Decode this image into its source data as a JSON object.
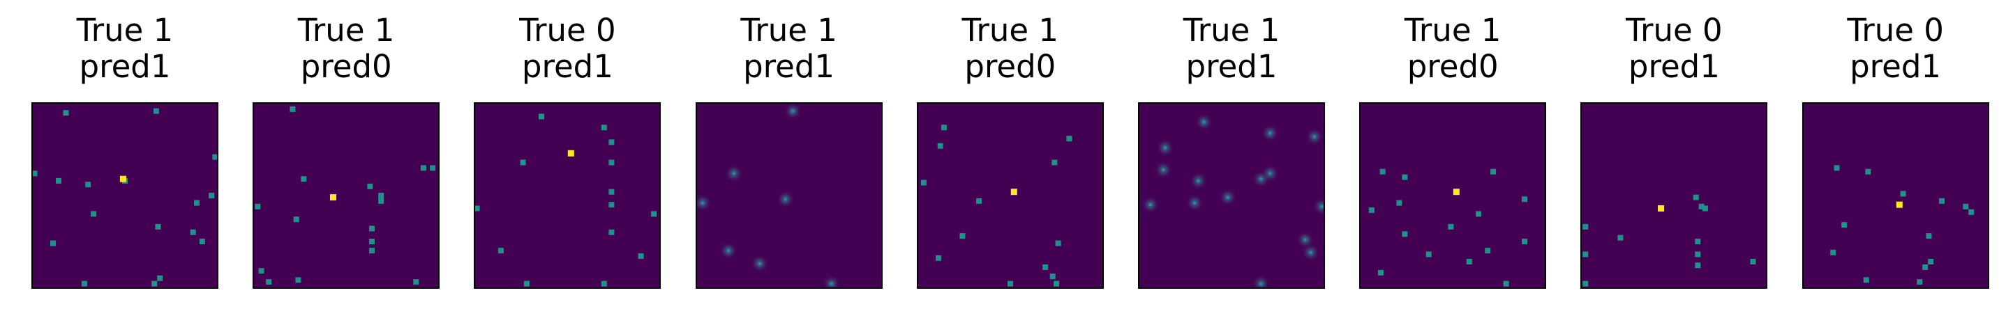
{
  "colors": {
    "background": "#440154",
    "dot_mid": "#21918c",
    "dot_high": "#fde725"
  },
  "panels": [
    {
      "title_line1": "True 1",
      "title_line2": "pred1",
      "blur": false,
      "dots": [
        [
          0.18,
          0.05
        ],
        [
          0.67,
          0.04
        ],
        [
          0.01,
          0.38
        ],
        [
          0.14,
          0.42
        ],
        [
          0.5,
          0.42
        ],
        [
          0.3,
          0.44
        ],
        [
          0.89,
          0.54
        ],
        [
          0.97,
          0.5
        ],
        [
          0.33,
          0.6
        ],
        [
          0.68,
          0.67
        ],
        [
          0.87,
          0.7
        ],
        [
          0.92,
          0.75
        ],
        [
          0.11,
          0.76
        ],
        [
          0.99,
          0.29
        ],
        [
          0.69,
          0.95
        ],
        [
          0.66,
          0.98
        ],
        [
          0.28,
          0.98
        ]
      ],
      "hot": [
        [
          0.49,
          0.41
        ]
      ]
    },
    {
      "title_line1": "True 1",
      "title_line2": "pred0",
      "blur": false,
      "dots": [
        [
          0.21,
          0.03
        ],
        [
          0.92,
          0.35
        ],
        [
          0.97,
          0.35
        ],
        [
          0.63,
          0.45
        ],
        [
          0.27,
          0.41
        ],
        [
          0.02,
          0.56
        ],
        [
          0.69,
          0.5
        ],
        [
          0.69,
          0.53
        ],
        [
          0.23,
          0.63
        ],
        [
          0.64,
          0.68
        ],
        [
          0.64,
          0.75
        ],
        [
          0.64,
          0.8
        ],
        [
          0.04,
          0.91
        ],
        [
          0.24,
          0.96
        ],
        [
          0.08,
          0.97
        ],
        [
          0.88,
          0.97
        ]
      ],
      "hot": [
        [
          0.43,
          0.51
        ]
      ]
    },
    {
      "title_line1": "True 0",
      "title_line2": "pred1",
      "blur": false,
      "dots": [
        [
          0.36,
          0.07
        ],
        [
          0.7,
          0.13
        ],
        [
          0.74,
          0.21
        ],
        [
          0.74,
          0.32
        ],
        [
          0.26,
          0.32
        ],
        [
          0.74,
          0.48
        ],
        [
          0.74,
          0.55
        ],
        [
          0.01,
          0.57
        ],
        [
          0.74,
          0.7
        ],
        [
          0.97,
          0.6
        ],
        [
          0.14,
          0.8
        ],
        [
          0.9,
          0.83
        ],
        [
          0.28,
          0.98
        ],
        [
          0.7,
          0.98
        ]
      ],
      "hot": [
        [
          0.52,
          0.27
        ]
      ]
    },
    {
      "title_line1": "True 1",
      "title_line2": "pred1",
      "blur": true,
      "dots": [
        [
          0.2,
          0.38
        ],
        [
          0.48,
          0.52
        ],
        [
          0.03,
          0.54
        ],
        [
          0.17,
          0.8
        ],
        [
          0.34,
          0.87
        ],
        [
          0.73,
          0.98
        ],
        [
          0.52,
          0.04
        ]
      ],
      "hot": []
    },
    {
      "title_line1": "True 1",
      "title_line2": "pred0",
      "blur": false,
      "dots": [
        [
          0.14,
          0.13
        ],
        [
          0.82,
          0.19
        ],
        [
          0.12,
          0.23
        ],
        [
          0.74,
          0.32
        ],
        [
          0.03,
          0.43
        ],
        [
          0.33,
          0.53
        ],
        [
          0.24,
          0.72
        ],
        [
          0.76,
          0.76
        ],
        [
          0.11,
          0.84
        ],
        [
          0.69,
          0.89
        ],
        [
          0.73,
          0.94
        ],
        [
          0.75,
          0.98
        ],
        [
          0.5,
          0.98
        ]
      ],
      "hot": [
        [
          0.52,
          0.48
        ]
      ]
    },
    {
      "title_line1": "True 1",
      "title_line2": "pred1",
      "blur": true,
      "dots": [
        [
          0.35,
          0.1
        ],
        [
          0.71,
          0.16
        ],
        [
          0.95,
          0.18
        ],
        [
          0.14,
          0.24
        ],
        [
          0.71,
          0.38
        ],
        [
          0.66,
          0.41
        ],
        [
          0.32,
          0.42
        ],
        [
          0.13,
          0.36
        ],
        [
          0.48,
          0.51
        ],
        [
          0.3,
          0.54
        ],
        [
          0.06,
          0.55
        ],
        [
          0.99,
          0.56
        ],
        [
          0.9,
          0.74
        ],
        [
          0.93,
          0.81
        ],
        [
          0.66,
          0.98
        ]
      ],
      "hot": []
    },
    {
      "title_line1": "True 1",
      "title_line2": "pred0",
      "blur": false,
      "dots": [
        [
          0.12,
          0.37
        ],
        [
          0.24,
          0.4
        ],
        [
          0.72,
          0.37
        ],
        [
          0.89,
          0.52
        ],
        [
          0.21,
          0.54
        ],
        [
          0.06,
          0.58
        ],
        [
          0.64,
          0.6
        ],
        [
          0.49,
          0.67
        ],
        [
          0.24,
          0.71
        ],
        [
          0.89,
          0.75
        ],
        [
          0.69,
          0.8
        ],
        [
          0.37,
          0.82
        ],
        [
          0.59,
          0.86
        ],
        [
          0.11,
          0.92
        ],
        [
          0.79,
          0.98
        ]
      ],
      "hot": [
        [
          0.52,
          0.48
        ]
      ]
    },
    {
      "title_line1": "True 0",
      "title_line2": "pred1",
      "blur": false,
      "dots": [
        [
          0.62,
          0.51
        ],
        [
          0.65,
          0.56
        ],
        [
          0.67,
          0.57
        ],
        [
          0.02,
          0.67
        ],
        [
          0.21,
          0.73
        ],
        [
          0.63,
          0.75
        ],
        [
          0.63,
          0.82
        ],
        [
          0.63,
          0.88
        ],
        [
          0.02,
          0.82
        ],
        [
          0.02,
          0.98
        ],
        [
          0.93,
          0.86
        ]
      ],
      "hot": [
        [
          0.43,
          0.57
        ]
      ]
    },
    {
      "title_line1": "True 0",
      "title_line2": "pred1",
      "blur": false,
      "dots": [
        [
          0.18,
          0.35
        ],
        [
          0.35,
          0.37
        ],
        [
          0.54,
          0.49
        ],
        [
          0.75,
          0.53
        ],
        [
          0.88,
          0.56
        ],
        [
          0.22,
          0.66
        ],
        [
          0.68,
          0.72
        ],
        [
          0.16,
          0.81
        ],
        [
          0.69,
          0.86
        ],
        [
          0.66,
          0.89
        ],
        [
          0.34,
          0.96
        ],
        [
          0.63,
          0.97
        ],
        [
          0.91,
          0.59
        ]
      ],
      "hot": [
        [
          0.52,
          0.55
        ]
      ]
    }
  ]
}
